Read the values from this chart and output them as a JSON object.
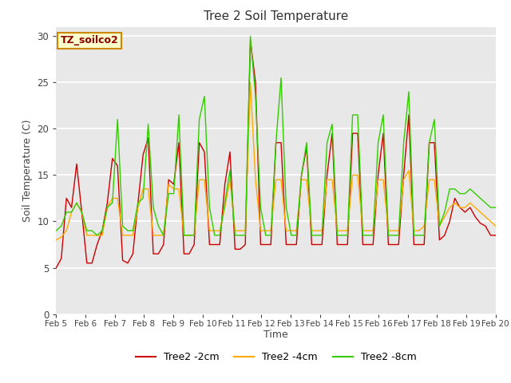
{
  "title": "Tree 2 Soil Temperature",
  "xlabel": "Time",
  "ylabel": "Soil Temperature (C)",
  "annotation": "TZ_soilco2",
  "ylim": [
    0,
    31
  ],
  "yticks": [
    0,
    5,
    10,
    15,
    20,
    25,
    30
  ],
  "x_labels": [
    "Feb 5",
    "Feb 6",
    "Feb 7",
    "Feb 8",
    "Feb 9",
    "Feb 10",
    "Feb 11",
    "Feb 12",
    "Feb 13",
    "Feb 14",
    "Feb 15",
    "Feb 16",
    "Feb 17",
    "Feb 18",
    "Feb 19",
    "Feb 20"
  ],
  "bg_color": "#e8e8e8",
  "plot_bg": "#e0e0e0",
  "fig_color": "#ffffff",
  "colors": {
    "2cm": "#cc0000",
    "4cm": "#ffaa00",
    "8cm": "#33cc00"
  },
  "legend_labels": [
    "Tree2 -2cm",
    "Tree2 -4cm",
    "Tree2 -8cm"
  ],
  "series_2cm": [
    5.0,
    6.0,
    12.5,
    11.5,
    16.2,
    11.0,
    5.5,
    5.5,
    7.5,
    9.0,
    12.0,
    16.8,
    16.0,
    5.8,
    5.5,
    6.5,
    12.0,
    17.2,
    19.0,
    6.5,
    6.5,
    7.5,
    14.5,
    14.0,
    18.5,
    6.5,
    6.5,
    7.5,
    18.5,
    17.5,
    7.5,
    7.5,
    7.5,
    14.0,
    17.5,
    7.0,
    7.0,
    7.5,
    29.5,
    25.0,
    7.5,
    7.5,
    7.5,
    18.5,
    18.5,
    7.5,
    7.5,
    7.5,
    15.0,
    18.0,
    7.5,
    7.5,
    7.5,
    15.0,
    19.5,
    7.5,
    7.5,
    7.5,
    19.5,
    19.5,
    7.5,
    7.5,
    7.5,
    15.0,
    19.5,
    7.5,
    7.5,
    7.5,
    15.0,
    21.5,
    7.5,
    7.5,
    7.5,
    18.5,
    18.5,
    8.0,
    8.5,
    10.0,
    12.5,
    11.5,
    11.0,
    11.5,
    10.5,
    9.8,
    9.5,
    8.5,
    8.5
  ],
  "series_4cm": [
    8.0,
    8.3,
    9.0,
    11.0,
    12.0,
    11.0,
    8.5,
    8.5,
    8.5,
    8.5,
    11.5,
    12.5,
    12.5,
    8.5,
    8.5,
    8.5,
    11.5,
    13.5,
    13.5,
    8.5,
    8.5,
    8.5,
    14.0,
    13.5,
    13.5,
    8.5,
    8.5,
    8.5,
    14.5,
    14.5,
    9.0,
    9.0,
    9.0,
    11.5,
    14.5,
    9.0,
    9.0,
    9.0,
    25.0,
    14.5,
    9.0,
    9.0,
    9.0,
    14.5,
    14.5,
    9.0,
    9.0,
    9.0,
    14.5,
    14.5,
    9.0,
    9.0,
    9.0,
    14.5,
    14.5,
    9.0,
    9.0,
    9.0,
    15.0,
    15.0,
    9.0,
    9.0,
    9.0,
    14.5,
    14.5,
    9.0,
    9.0,
    9.0,
    14.5,
    15.5,
    9.0,
    9.0,
    9.5,
    14.5,
    14.5,
    9.5,
    10.5,
    11.5,
    12.0,
    11.5,
    11.5,
    12.0,
    11.5,
    11.0,
    10.5,
    10.0,
    9.5
  ],
  "series_8cm": [
    9.0,
    9.5,
    11.0,
    11.0,
    12.0,
    11.0,
    9.0,
    9.0,
    8.5,
    9.0,
    11.5,
    12.0,
    21.0,
    9.5,
    9.0,
    9.0,
    12.0,
    12.5,
    20.5,
    11.5,
    9.5,
    8.5,
    13.0,
    13.0,
    21.5,
    8.5,
    8.5,
    8.5,
    21.0,
    23.5,
    11.5,
    8.5,
    8.5,
    12.0,
    15.5,
    8.5,
    8.5,
    8.5,
    30.0,
    23.5,
    11.5,
    8.5,
    8.5,
    18.5,
    25.5,
    11.5,
    8.5,
    8.5,
    15.0,
    18.5,
    8.5,
    8.5,
    8.5,
    18.5,
    20.5,
    8.5,
    8.5,
    8.5,
    21.5,
    21.5,
    8.5,
    8.5,
    8.5,
    18.5,
    21.5,
    8.5,
    8.5,
    8.5,
    18.5,
    24.0,
    8.5,
    8.5,
    8.5,
    18.5,
    21.0,
    9.5,
    11.0,
    13.5,
    13.5,
    13.0,
    13.0,
    13.5,
    13.0,
    12.5,
    12.0,
    11.5,
    11.5
  ]
}
